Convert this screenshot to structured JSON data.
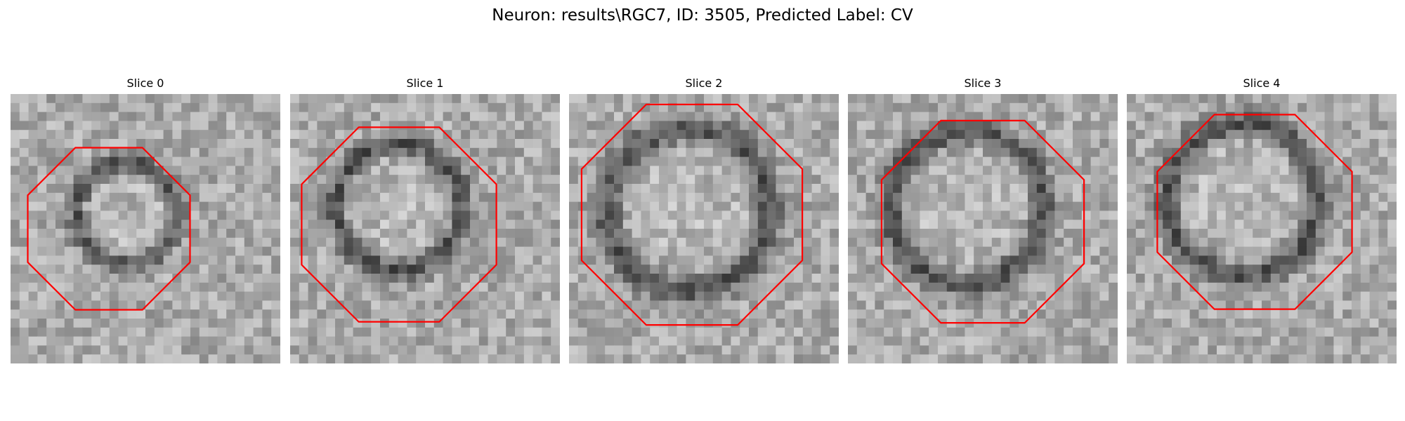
{
  "figure": {
    "title": "Neuron: results\\RGC7, ID: 3505, Predicted Label: CV",
    "colors": {
      "background": "#ffffff",
      "contour": "#ff0000"
    }
  },
  "panels": [
    {
      "title": "Slice 0"
    },
    {
      "title": "Slice 1"
    },
    {
      "title": "Slice 2"
    },
    {
      "title": "Slice 3"
    },
    {
      "title": "Slice 4"
    }
  ]
}
